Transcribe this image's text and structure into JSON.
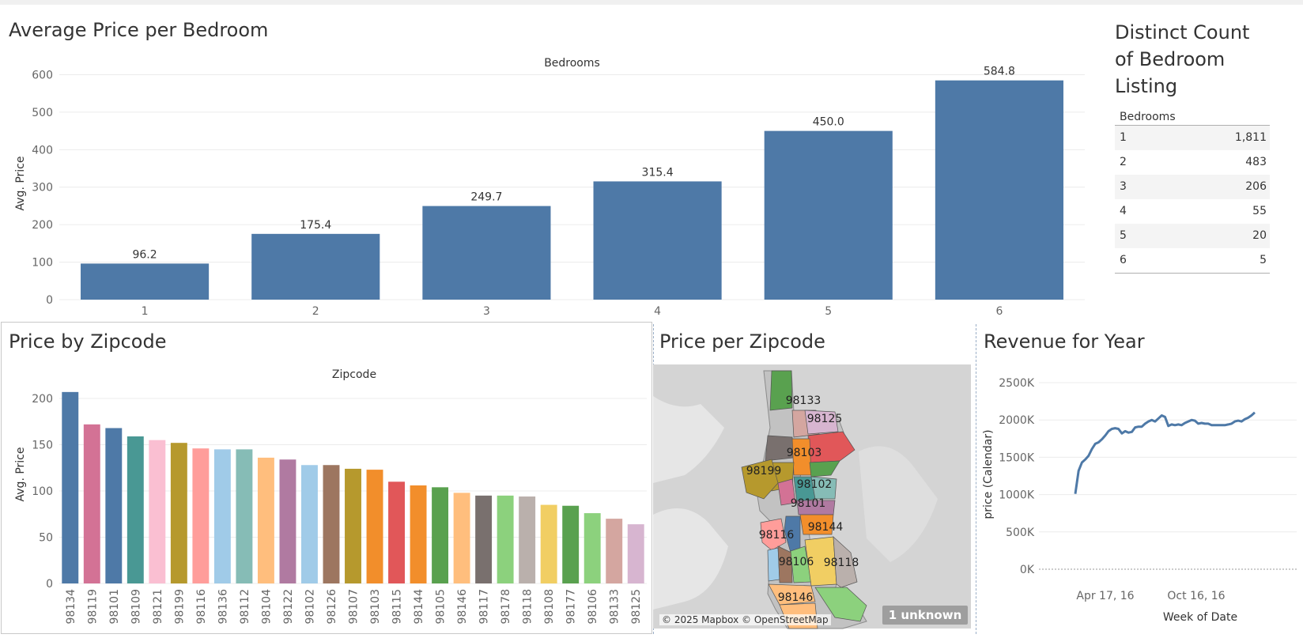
{
  "bedroom_panel": {
    "title": "Average Price per Bedroom",
    "header": "Bedrooms"
  },
  "count_panel": {
    "title_lines": [
      "Distinct Count",
      "of Bedroom",
      "Listing"
    ],
    "column_header": "Bedrooms",
    "rows": [
      {
        "label": "1",
        "value": "1,811"
      },
      {
        "label": "2",
        "value": "483"
      },
      {
        "label": "3",
        "value": "206"
      },
      {
        "label": "4",
        "value": "55"
      },
      {
        "label": "5",
        "value": "20"
      },
      {
        "label": "6",
        "value": "5"
      }
    ]
  },
  "zip_panel": {
    "title": "Price by Zipcode",
    "header": "Zipcode"
  },
  "map_panel": {
    "title": "Price per Zipcode",
    "attribution": "© 2025 Mapbox © OpenStreetMap",
    "unknown_badge": "1 unknown",
    "labels": [
      "98133",
      "98125",
      "98103",
      "98199",
      "98102",
      "98101",
      "98144",
      "98116",
      "98106",
      "98118",
      "98146"
    ]
  },
  "revenue_panel": {
    "title": "Revenue for Year"
  },
  "chart_data": [
    {
      "type": "bar",
      "title": "Average Price per Bedroom",
      "xlabel": "Bedrooms",
      "ylabel": "Avg. Price",
      "categories": [
        "1",
        "2",
        "3",
        "4",
        "5",
        "6"
      ],
      "values": [
        96.2,
        175.4,
        249.7,
        315.4,
        450.0,
        584.8
      ],
      "data_labels": [
        "96.2",
        "175.4",
        "249.7",
        "315.4",
        "450.0",
        "584.8"
      ],
      "yticks": [
        0,
        100,
        200,
        300,
        400,
        500,
        600
      ],
      "ylim": [
        0,
        620
      ],
      "color": "#4e79a7",
      "grid": true
    },
    {
      "type": "bar",
      "title": "Price by Zipcode",
      "xlabel": "Zipcode",
      "ylabel": "Avg. Price",
      "categories": [
        "98134",
        "98119",
        "98101",
        "98109",
        "98121",
        "98199",
        "98116",
        "98136",
        "98112",
        "98104",
        "98122",
        "98102",
        "98126",
        "98107",
        "98103",
        "98115",
        "98144",
        "98105",
        "98146",
        "98117",
        "98178",
        "98118",
        "98108",
        "98177",
        "98106",
        "98133",
        "98125"
      ],
      "values": [
        207,
        172,
        168,
        159,
        155,
        152,
        146,
        145,
        145,
        136,
        134,
        128,
        128,
        124,
        123,
        110,
        106,
        104,
        98,
        95,
        95,
        94,
        85,
        84,
        76,
        70,
        64
      ],
      "colors": [
        "#4e79a7",
        "#d37295",
        "#4e79a7",
        "#499894",
        "#fabfd2",
        "#b6992d",
        "#ff9d9a",
        "#a0cbe8",
        "#86bcb6",
        "#ffbe7d",
        "#b07aa1",
        "#a0cbe8",
        "#9d7660",
        "#b6992d",
        "#f28e2b",
        "#e15759",
        "#f28e2b",
        "#59a14f",
        "#ffbe7d",
        "#79706e",
        "#8cd17d",
        "#bab0ac",
        "#f1ce63",
        "#59a14f",
        "#8cd17d",
        "#d4a6a0",
        "#d7b5d0"
      ],
      "yticks": [
        0,
        50,
        100,
        150,
        200
      ],
      "ylim": [
        0,
        212
      ],
      "grid": true
    },
    {
      "type": "line",
      "title": "Revenue for Year",
      "xlabel": "Week of Date",
      "ylabel": "price (Calendar)",
      "yticks": [
        "0K",
        "500K",
        "1000K",
        "1500K",
        "2000K",
        "2500K"
      ],
      "ytick_values": [
        0,
        500000,
        1000000,
        1500000,
        2000000,
        2500000
      ],
      "xticks": [
        "Apr 17, 16",
        "Oct 16, 16"
      ],
      "ylim": [
        0,
        2500000
      ],
      "series": [
        {
          "color": "#4e79a7",
          "values": [
            1010000,
            1320000,
            1430000,
            1470000,
            1520000,
            1610000,
            1680000,
            1700000,
            1740000,
            1790000,
            1850000,
            1880000,
            1890000,
            1880000,
            1820000,
            1850000,
            1830000,
            1840000,
            1900000,
            1910000,
            1910000,
            1950000,
            1980000,
            2000000,
            1980000,
            2020000,
            2060000,
            2040000,
            1920000,
            1940000,
            1930000,
            1940000,
            1930000,
            1960000,
            1980000,
            2000000,
            1990000,
            1950000,
            1960000,
            1950000,
            1950000,
            1930000,
            1930000,
            1930000,
            1930000,
            1930000,
            1940000,
            1950000,
            1980000,
            1990000,
            1980000,
            2010000,
            2030000,
            2060000,
            2100000
          ]
        }
      ],
      "grid": true
    }
  ]
}
